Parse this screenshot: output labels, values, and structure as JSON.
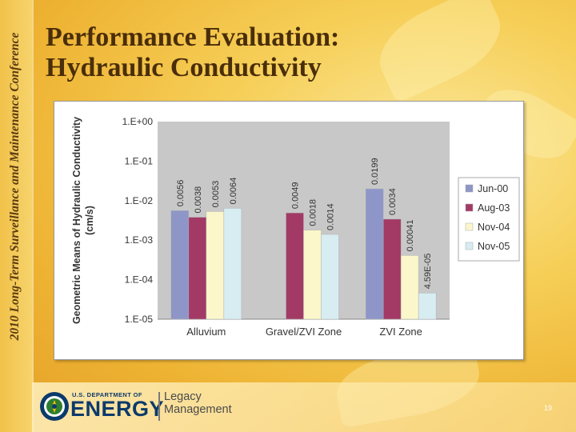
{
  "side_caption": "2010 Long-Term Surveillance and Maintenance Conference",
  "slide_title": [
    "Performance Evaluation:",
    "Hydraulic Conductivity"
  ],
  "footer": {
    "agency_line": "U.S. DEPARTMENT OF",
    "agency_name": "ENERGY",
    "office_line1": "Legacy",
    "office_line2": "Management",
    "page_number": "19"
  },
  "colors": {
    "Jun-00": "#8e96c8",
    "Aug-03": "#a33a66",
    "Nov-04": "#fbf7cb",
    "Nov-05": "#d8edf2",
    "plot_bg": "#c8c8c8",
    "doe_blue": "#0b3a6b"
  },
  "icons": {
    "agency_logo": "doe-seal-icon"
  },
  "chart_data": {
    "type": "bar",
    "yscale": "log",
    "ylabel": "Geometric Means of Hydraulic Conductivity (cm/s)",
    "ylim": [
      1e-05,
      1
    ],
    "yticks": [
      "1.E+00",
      "1.E-01",
      "1.E-02",
      "1.E-03",
      "1.E-04",
      "1.E-05"
    ],
    "categories": [
      "Alluvium",
      "Gravel/ZVI Zone",
      "ZVI Zone"
    ],
    "legend_position": "right",
    "grid": false,
    "series": [
      {
        "name": "Jun-00",
        "values": [
          0.0056,
          null,
          0.0199
        ],
        "labels": [
          "0.0056",
          "",
          "0.0199"
        ]
      },
      {
        "name": "Aug-03",
        "values": [
          0.0038,
          0.0049,
          0.0034
        ],
        "labels": [
          "0.0038",
          "0.0049",
          "0.0034"
        ]
      },
      {
        "name": "Nov-04",
        "values": [
          0.0053,
          0.0018,
          0.00041
        ],
        "labels": [
          "0.0053",
          "0.0018",
          "0.00041"
        ]
      },
      {
        "name": "Nov-05",
        "values": [
          0.0064,
          0.0014,
          4.59e-05
        ],
        "labels": [
          "0.0064",
          "0.0014",
          "4.59E-05"
        ]
      }
    ]
  }
}
